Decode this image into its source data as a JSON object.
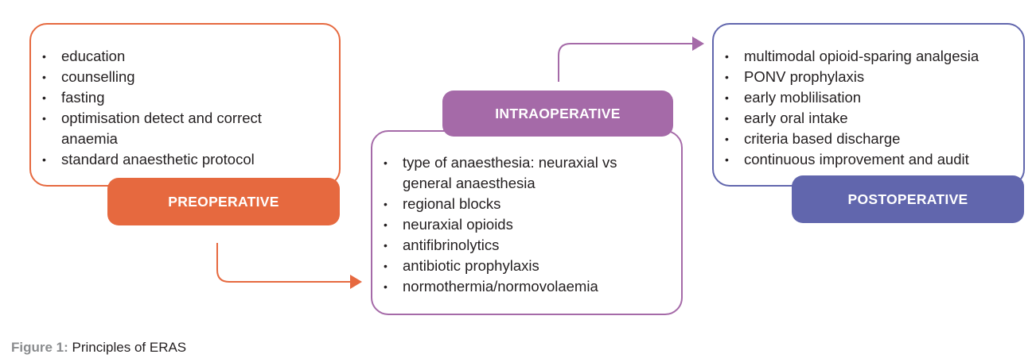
{
  "colors": {
    "preoperative": "#e6693f",
    "intraoperative": "#a56aa8",
    "postoperative": "#6166ad",
    "caption_prefix": "#8a8c8e"
  },
  "preoperative": {
    "label": "PREOPERATIVE",
    "items": [
      "education",
      "counselling",
      "fasting",
      "optimisation detect and correct anaemia",
      "standard anaesthetic protocol"
    ]
  },
  "intraoperative": {
    "label": "INTRAOPERATIVE",
    "items": [
      "type of anaesthesia: neuraxial vs general anaesthesia",
      "regional blocks",
      "neuraxial opioids",
      "antifibrinolytics",
      "antibiotic prophylaxis",
      "normothermia/normovolaemia"
    ]
  },
  "postoperative": {
    "label": "POSTOPERATIVE",
    "items": [
      "multimodal opioid-sparing analgesia",
      "PONV prophylaxis",
      "early moblilisation",
      "early oral intake",
      "criteria based discharge",
      "continuous improvement and audit"
    ]
  },
  "caption": {
    "prefix": "Figure 1:",
    "text": "Principles of ERAS"
  }
}
